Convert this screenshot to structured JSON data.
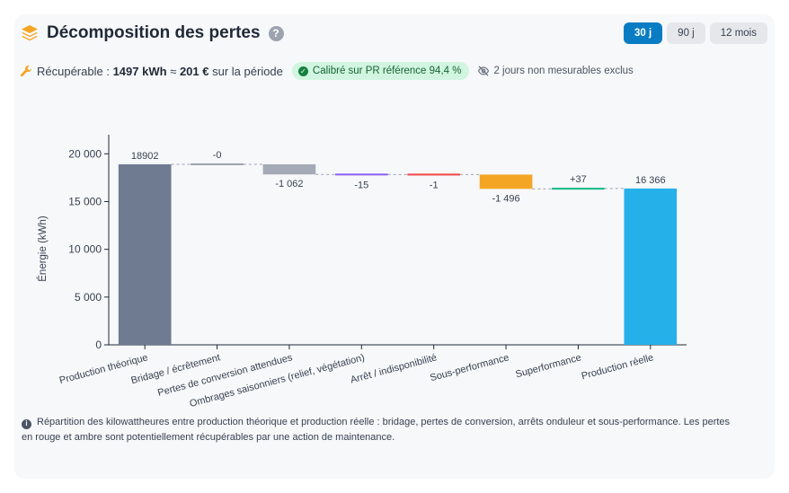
{
  "header": {
    "title": "Décomposition des pertes",
    "help_glyph": "?",
    "ranges": [
      "30 j",
      "90 j",
      "12 mois"
    ],
    "active_range": "30 j"
  },
  "summary": {
    "label": "Récupérable :",
    "energy": "1497 kWh",
    "approx": "≈",
    "money": "201 €",
    "suffix": "sur la période",
    "badge": "Calibré sur PR référence 94,4 %",
    "excluded": "2 jours non mesurables exclus"
  },
  "footnote": "Répartition des kilowattheures entre production théorique et production réelle : bridage, pertes de conversion, arrêts onduleur et sous-performance. Les pertes en rouge et ambre sont potentiellement récupérables par une action de maintenance.",
  "colors": {
    "accent": "#0a7cc4",
    "total_start": "#6e7b91",
    "total_end": "#26b0ea",
    "bridage": "#9aa0ab",
    "conversion": "#a5abb6",
    "ombrages": "#8b5cf6",
    "arret": "#ef4444",
    "sous_performance": "#f5a524",
    "surperformance": "#10b981",
    "connector": "#9ca3af"
  },
  "chart_data": {
    "type": "waterfall",
    "ylabel": "Énergie (kWh)",
    "ylim": [
      0,
      22000
    ],
    "yticks": [
      0,
      5000,
      10000,
      15000,
      20000
    ],
    "ytick_labels": [
      "0",
      "5 000",
      "10 000",
      "15 000",
      "20 000"
    ],
    "grid": false,
    "steps": [
      {
        "category": "Production théorique",
        "kind": "total",
        "value": 18902,
        "label": "18902",
        "color_key": "total_start"
      },
      {
        "category": "Bridage / écrêtement",
        "kind": "delta",
        "value": 0,
        "label": "-0",
        "color_key": "bridage"
      },
      {
        "category": "Pertes de conversion attendues",
        "kind": "delta",
        "value": -1062,
        "label": "-1 062",
        "color_key": "conversion"
      },
      {
        "category": "Ombrages saisonniers (relief, végétation)",
        "kind": "delta",
        "value": -15,
        "label": "-15",
        "color_key": "ombrages"
      },
      {
        "category": "Arrêt / indisponibilité",
        "kind": "delta",
        "value": -1,
        "label": "-1",
        "color_key": "arret"
      },
      {
        "category": "Sous-performance",
        "kind": "delta",
        "value": -1496,
        "label": "-1 496",
        "color_key": "sous_performance"
      },
      {
        "category": "Superformance",
        "kind": "delta",
        "value": 37,
        "label": "+37",
        "color_key": "surperformance"
      },
      {
        "category": "Production réelle",
        "kind": "total",
        "value": 16366,
        "label": "16 366",
        "color_key": "total_end"
      }
    ]
  }
}
